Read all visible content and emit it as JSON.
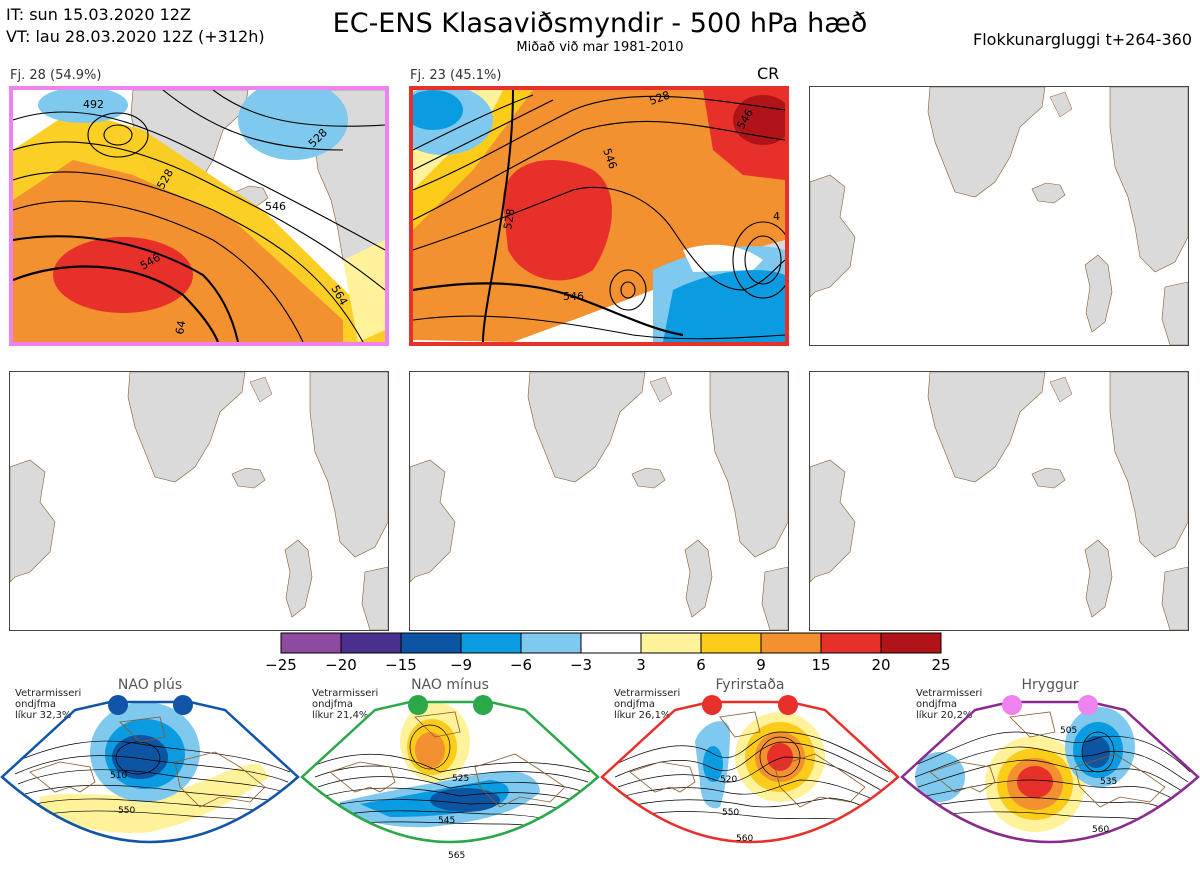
{
  "header": {
    "it_line": "IT: sun 15.03.2020 12Z",
    "vt_line": "VT: lau 28.03.2020 12Z  (+312h)",
    "title": "EC-ENS Klasaviðsmyndir - 500 hPa hæð",
    "subtitle": "Miðað við mar 1981-2010",
    "window": "Flokkunargluggi t+264-360"
  },
  "panels": [
    {
      "label": "Fj. 28 (54.9%)",
      "border": "#ee82ee",
      "tag": "",
      "contours": [
        "492",
        "528",
        "546",
        "546",
        "564",
        "528",
        "64"
      ]
    },
    {
      "label": "Fj. 23 (45.1%)",
      "border": "#e8302a",
      "tag": "CR",
      "contours": [
        "528",
        "546",
        "546",
        "528",
        "546",
        "4"
      ]
    },
    {
      "label": "",
      "border": "#444444",
      "tag": "",
      "contours": []
    },
    {
      "label": "",
      "border": "#444444",
      "tag": "",
      "contours": []
    },
    {
      "label": "",
      "border": "#444444",
      "tag": "",
      "contours": []
    },
    {
      "label": "",
      "border": "#444444",
      "tag": "",
      "contours": []
    }
  ],
  "colorbar": {
    "ticks": [
      "−25",
      "−20",
      "−15",
      "−9",
      "−6",
      "−3",
      "3",
      "6",
      "9",
      "15",
      "20",
      "25"
    ],
    "colors": [
      "#8e4a9e",
      "#4b2f8e",
      "#0d55a3",
      "#0a9be0",
      "#7fc8ee",
      "#ffffff",
      "#fff29a",
      "#fccc1a",
      "#f39030",
      "#e8302a",
      "#b01418"
    ]
  },
  "regimes": [
    {
      "name": "NAO plús",
      "note1": "Vetrarmisseri",
      "note2": "ondjfma",
      "note3": "líkur 32,3%",
      "color": "#1155a8",
      "dot": "#1155a8",
      "contours": [
        "510",
        "550"
      ]
    },
    {
      "name": "NAO mínus",
      "note1": "Vetrarmisseri",
      "note2": "ondjfma",
      "note3": "líkur 21,4%",
      "color": "#2aa84a",
      "dot": "#2aa84a",
      "contours": [
        "525",
        "545",
        "565"
      ]
    },
    {
      "name": "Fyrirstaða",
      "note1": "Vetrarmisseri",
      "note2": "ondjfma",
      "note3": "líkur 26,1%",
      "color": "#e8302a",
      "dot": "#e8302a",
      "contours": [
        "520",
        "550",
        "560"
      ]
    },
    {
      "name": "Hryggur",
      "note1": "Vetrarmisseri",
      "note2": "ondjfma",
      "note3": "líkur 20,2%",
      "color": "#8a2a8e",
      "dot": "#ee82ee",
      "contours": [
        "505",
        "535",
        "560"
      ]
    }
  ]
}
